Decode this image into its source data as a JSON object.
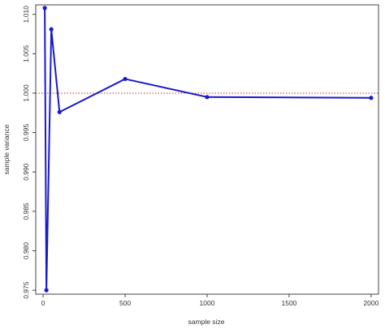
{
  "chart_data": {
    "type": "line",
    "title": "",
    "xlabel": "sample size",
    "ylabel": "sample variance",
    "xlim": [
      -45,
      2045
    ],
    "ylim": [
      0.9745,
      1.0112
    ],
    "xticks": [
      0,
      500,
      1000,
      1500,
      2000
    ],
    "yticks": [
      0.975,
      0.98,
      0.985,
      0.99,
      0.995,
      1.0,
      1.005,
      1.01
    ],
    "ytick_labels": [
      "0.975",
      "0.980",
      "0.985",
      "0.990",
      "0.995",
      "1.000",
      "1.005",
      "1.010"
    ],
    "reference_line": {
      "y": 1.0,
      "style": "dotted",
      "color": "#d62b1f"
    },
    "series": [
      {
        "color": "#1a1acc",
        "x": [
          10,
          20,
          50,
          100,
          500,
          1000,
          2000
        ],
        "y": [
          1.0108,
          0.975,
          1.0081,
          0.9976,
          1.0018,
          0.9995,
          0.9994
        ]
      }
    ],
    "grid": false,
    "legend": "none"
  }
}
